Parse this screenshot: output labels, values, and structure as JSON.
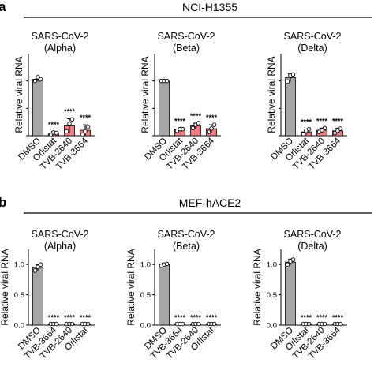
{
  "panels": [
    {
      "letter": "a",
      "header": "NCI-H1355",
      "charts": [
        {
          "type": "bar",
          "title": [
            "SARS-CoV-2",
            "(Alpha)"
          ],
          "ylabel": "Relative viral RNA",
          "categories": [
            "DMSO",
            "Orlistat",
            "TVB-2640",
            "TVB-3664"
          ],
          "values": [
            1.03,
            0.04,
            0.18,
            0.1
          ],
          "errors": [
            0.04,
            0.03,
            0.13,
            0.1
          ],
          "points": [
            [
              1.0,
              1.07,
              1.03
            ],
            [
              0.02,
              0.06,
              0.05
            ],
            [
              0.08,
              0.22,
              0.3
            ],
            [
              0.02,
              0.08,
              0.16
            ]
          ],
          "significance": [
            "",
            "****",
            "****",
            "****"
          ],
          "colors": [
            "#a6a6a6",
            "#ef7c82",
            "#ef7c82",
            "#ef7c82"
          ],
          "ylim": [
            0,
            1.5
          ],
          "yticks": []
        },
        {
          "type": "bar",
          "title": [
            "SARS-CoV-2",
            "(Beta)"
          ],
          "ylabel": "Relative viral RNA",
          "categories": [
            "DMSO",
            "Orlistat",
            "TVB-2640",
            "TVB-3664"
          ],
          "values": [
            1.0,
            0.11,
            0.18,
            0.13
          ],
          "errors": [
            0.01,
            0.03,
            0.05,
            0.07
          ],
          "points": [
            [
              1.0,
              1.0,
              1.0
            ],
            [
              0.09,
              0.12,
              0.12
            ],
            [
              0.14,
              0.2,
              0.23
            ],
            [
              0.07,
              0.13,
              0.2
            ]
          ],
          "significance": [
            "",
            "****",
            "****",
            "****"
          ],
          "colors": [
            "#a6a6a6",
            "#ef7c82",
            "#ef7c82",
            "#ef7c82"
          ],
          "ylim": [
            0,
            1.5
          ],
          "yticks": []
        },
        {
          "type": "bar",
          "title": [
            "SARS-CoV-2",
            "(Delta)"
          ],
          "ylabel": "Relative viral RNA",
          "categories": [
            "DMSO",
            "Orlistat",
            "TVB-2640",
            "TVB-3664"
          ],
          "values": [
            1.06,
            0.07,
            0.1,
            0.09
          ],
          "errors": [
            0.07,
            0.05,
            0.04,
            0.05
          ],
          "points": [
            [
              0.99,
              1.1,
              1.12
            ],
            [
              0.03,
              0.09,
              0.12
            ],
            [
              0.07,
              0.1,
              0.14
            ],
            [
              0.05,
              0.09,
              0.13
            ]
          ],
          "significance": [
            "",
            "****",
            "****",
            "****"
          ],
          "colors": [
            "#a6a6a6",
            "#ef7c82",
            "#ef7c82",
            "#ef7c82"
          ],
          "ylim": [
            0,
            1.5
          ],
          "yticks": []
        }
      ]
    },
    {
      "letter": "b",
      "header": "MEF-hACE2",
      "charts": [
        {
          "type": "bar",
          "title": [
            "SARS-CoV-2",
            "(Alpha)"
          ],
          "ylabel": "Relative viral RNA",
          "categories": [
            "DMSO",
            "TVB-3664",
            "TVB-2640",
            "Orlistat"
          ],
          "values": [
            0.95,
            0.0,
            0.0,
            0.0
          ],
          "errors": [
            0.05,
            0.005,
            0.005,
            0.005
          ],
          "points": [
            [
              0.9,
              0.96,
              1.0
            ],
            [
              0.0,
              0.0,
              0.0
            ],
            [
              0.0,
              0.0,
              0.0
            ],
            [
              0.0,
              0.0,
              0.0
            ]
          ],
          "significance": [
            "",
            "****",
            "****",
            "****"
          ],
          "colors": [
            "#a6a6a6",
            "#ef7c82",
            "#ef7c82",
            "#ef7c82"
          ],
          "ylim": [
            0,
            1.25
          ],
          "yticks": [
            "0.0",
            "0.5",
            "1.0"
          ]
        },
        {
          "type": "bar",
          "title": [
            "SARS-CoV-2",
            "(Beta)"
          ],
          "ylabel": "Relative viral RNA",
          "categories": [
            "DMSO",
            "TVB-3664",
            "TVB-2640",
            "Orlistat"
          ],
          "values": [
            1.0,
            0.0,
            0.0,
            0.0
          ],
          "errors": [
            0.02,
            0.005,
            0.005,
            0.005
          ],
          "points": [
            [
              0.98,
              1.0,
              1.01
            ],
            [
              0.0,
              0.0,
              0.0
            ],
            [
              0.0,
              0.0,
              0.0
            ],
            [
              0.0,
              0.0,
              0.0
            ]
          ],
          "significance": [
            "",
            "****",
            "****",
            "****"
          ],
          "colors": [
            "#a6a6a6",
            "#ef7c82",
            "#ef7c82",
            "#ef7c82"
          ],
          "ylim": [
            0,
            1.25
          ],
          "yticks": [
            "0.0",
            "0.5",
            "1.0"
          ]
        },
        {
          "type": "bar",
          "title": [
            "SARS-CoV-2",
            "(Delta)"
          ],
          "ylabel": "Relative viral RNA",
          "categories": [
            "DMSO",
            "Orlistat",
            "TVB-2640",
            "TVB-3664"
          ],
          "values": [
            1.04,
            0.0,
            0.0,
            0.0
          ],
          "errors": [
            0.05,
            0.005,
            0.005,
            0.005
          ],
          "points": [
            [
              1.0,
              1.05,
              1.08
            ],
            [
              0.0,
              0.0,
              0.0
            ],
            [
              0.0,
              0.0,
              0.0
            ],
            [
              0.0,
              0.0,
              0.0
            ]
          ],
          "significance": [
            "",
            "****",
            "****",
            "****"
          ],
          "colors": [
            "#a6a6a6",
            "#ef7c82",
            "#ef7c82",
            "#ef7c82"
          ],
          "ylim": [
            0,
            1.25
          ],
          "yticks": [
            "0.0",
            "0.5",
            "1.0"
          ]
        }
      ]
    }
  ],
  "chart_data": [
    {
      "type": "bar",
      "panel": "a",
      "cell_line": "NCI-H1355",
      "title": "SARS-CoV-2 (Alpha)",
      "ylabel": "Relative viral RNA",
      "categories": [
        "DMSO",
        "Orlistat",
        "TVB-2640",
        "TVB-3664"
      ],
      "values": [
        1.03,
        0.04,
        0.18,
        0.1
      ],
      "ylim": [
        0,
        1.5
      ]
    },
    {
      "type": "bar",
      "panel": "a",
      "cell_line": "NCI-H1355",
      "title": "SARS-CoV-2 (Beta)",
      "ylabel": "Relative viral RNA",
      "categories": [
        "DMSO",
        "Orlistat",
        "TVB-2640",
        "TVB-3664"
      ],
      "values": [
        1.0,
        0.11,
        0.18,
        0.13
      ],
      "ylim": [
        0,
        1.5
      ]
    },
    {
      "type": "bar",
      "panel": "a",
      "cell_line": "NCI-H1355",
      "title": "SARS-CoV-2 (Delta)",
      "ylabel": "Relative viral RNA",
      "categories": [
        "DMSO",
        "Orlistat",
        "TVB-2640",
        "TVB-3664"
      ],
      "values": [
        1.06,
        0.07,
        0.1,
        0.09
      ],
      "ylim": [
        0,
        1.5
      ]
    },
    {
      "type": "bar",
      "panel": "b",
      "cell_line": "MEF-hACE2",
      "title": "SARS-CoV-2 (Alpha)",
      "ylabel": "Relative viral RNA",
      "categories": [
        "DMSO",
        "TVB-3664",
        "TVB-2640",
        "Orlistat"
      ],
      "values": [
        0.95,
        0.0,
        0.0,
        0.0
      ],
      "ylim": [
        0,
        1.25
      ]
    },
    {
      "type": "bar",
      "panel": "b",
      "cell_line": "MEF-hACE2",
      "title": "SARS-CoV-2 (Beta)",
      "ylabel": "Relative viral RNA",
      "categories": [
        "DMSO",
        "TVB-3664",
        "TVB-2640",
        "Orlistat"
      ],
      "values": [
        1.0,
        0.0,
        0.0,
        0.0
      ],
      "ylim": [
        0,
        1.25
      ]
    },
    {
      "type": "bar",
      "panel": "b",
      "cell_line": "MEF-hACE2",
      "title": "SARS-CoV-2 (Delta)",
      "ylabel": "Relative viral RNA",
      "categories": [
        "DMSO",
        "Orlistat",
        "TVB-2640",
        "TVB-3664"
      ],
      "values": [
        1.04,
        0.0,
        0.0,
        0.0
      ],
      "ylim": [
        0,
        1.25
      ]
    }
  ]
}
